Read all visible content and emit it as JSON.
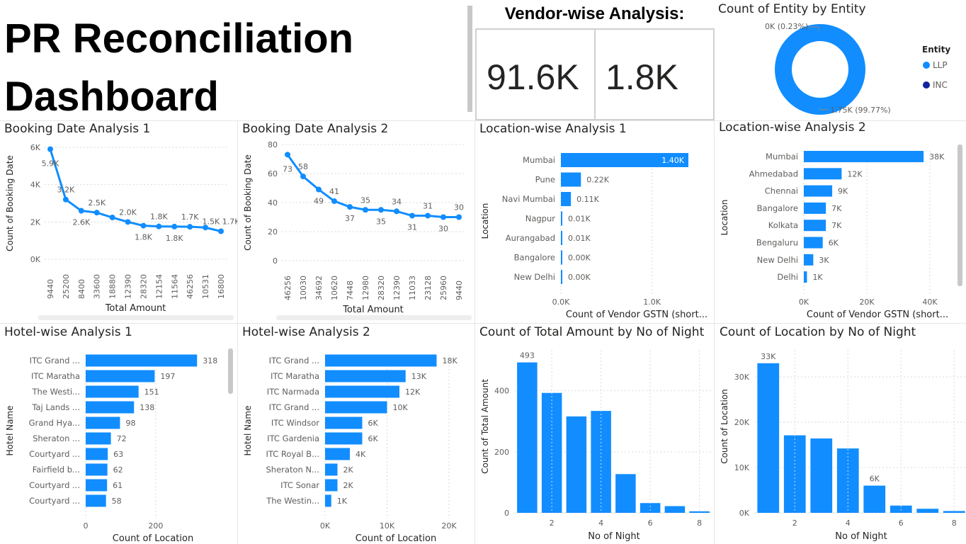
{
  "header": {
    "title_line1": "PR Reconciliation",
    "title_line2": "Dashboard",
    "vendor_title": "Vendor-wise Analysis:",
    "card1_value": "91.6K",
    "card2_value": "1.8K"
  },
  "colors": {
    "bar": "#118DFF",
    "inc": "#12239E",
    "grid": "#d9d9d9",
    "text": "#605E5C"
  },
  "donut": {
    "title": "Count of Entity by Entity",
    "legend_title": "Entity",
    "label_small": "0K (0.23%)",
    "label_large": "1.75K (99.77%)",
    "chart_data": {
      "type": "pie",
      "categories": [
        "LLP",
        "INC"
      ],
      "values": [
        99.77,
        0.23
      ]
    }
  },
  "booking1": {
    "title": "Booking Date Analysis 1",
    "chart_data": {
      "type": "line",
      "x": [
        "9440",
        "25200",
        "8400",
        "33600",
        "18880",
        "12390",
        "28320",
        "12154",
        "11564",
        "46256",
        "10531",
        "16800"
      ],
      "values": [
        5900,
        3200,
        2600,
        2500,
        2240,
        2000,
        1800,
        1760,
        1750,
        1740,
        1700,
        1500
      ],
      "labels": [
        "5.9K",
        "3.2K",
        "2.6K",
        "2.5K",
        "",
        "2.0K",
        "1.8K",
        "1.8K",
        "1.8K",
        "1.7K",
        "",
        "1.5K 1.7K"
      ],
      "ylim": [
        0,
        6000
      ],
      "yticks": [
        "0K",
        "2K",
        "4K",
        "6K"
      ],
      "xlabel": "Total Amount",
      "ylabel": "Count of Booking Date"
    }
  },
  "booking2": {
    "title": "Booking Date Analysis 2",
    "chart_data": {
      "type": "line",
      "x": [
        "46256",
        "10030",
        "34692",
        "10620",
        "7448",
        "12980",
        "28320",
        "12390",
        "11033",
        "23128",
        "25960",
        "9440"
      ],
      "values": [
        73,
        58,
        49,
        41,
        37,
        35,
        35,
        34,
        31,
        31,
        30,
        30
      ],
      "labels": [
        "73",
        "58",
        "49",
        "41",
        "37",
        "35",
        "35",
        "34",
        "31",
        "31",
        "30",
        "30"
      ],
      "ylim": [
        0,
        80
      ],
      "yticks": [
        "0",
        "20",
        "40",
        "60",
        "80"
      ],
      "xlabel": "Total Amount",
      "ylabel": "Count of Booking Date"
    }
  },
  "loc1": {
    "title": "Location-wise Analysis 1",
    "chart_data": {
      "type": "bar",
      "categories": [
        "Mumbai",
        "Pune",
        "Navi Mumbai",
        "Nagpur",
        "Aurangabad",
        "Bangalore",
        "New Delhi"
      ],
      "values": [
        1400,
        220,
        110,
        10,
        10,
        3,
        2
      ],
      "labels": [
        "1.40K",
        "0.22K",
        "0.11K",
        "0.01K",
        "0.01K",
        "0.00K",
        "0.00K"
      ],
      "xlim": [
        0,
        1400
      ],
      "xticks": [
        "0.0K",
        "1.0K"
      ],
      "xlabel": "Count of Vendor GSTN (short...",
      "ylabel": "Location"
    }
  },
  "loc2": {
    "title": "Location-wise Analysis 2",
    "chart_data": {
      "type": "bar",
      "categories": [
        "Mumbai",
        "Ahmedabad",
        "Chennai",
        "Bangalore",
        "Kolkata",
        "Bengaluru",
        "New Delhi",
        "Delhi"
      ],
      "values": [
        38000,
        12000,
        9000,
        7000,
        7000,
        6000,
        3000,
        1000
      ],
      "labels": [
        "38K",
        "12K",
        "9K",
        "7K",
        "7K",
        "6K",
        "3K",
        "1K"
      ],
      "xlim": [
        0,
        40000
      ],
      "xticks": [
        "0K",
        "20K",
        "40K"
      ],
      "xlabel": "Count of Vendor GSTN (short...",
      "ylabel": "Location"
    }
  },
  "hotel1": {
    "title": "Hotel-wise Analysis 1",
    "chart_data": {
      "type": "bar",
      "categories": [
        "ITC Grand ...",
        "ITC Maratha",
        "The Westi...",
        "Taj Lands ...",
        "Grand Hya...",
        "Sheraton ...",
        "Courtyard ...",
        "Fairfield b...",
        "Courtyard ...",
        "Courtyard ..."
      ],
      "values": [
        318,
        197,
        151,
        138,
        98,
        72,
        63,
        62,
        61,
        58
      ],
      "labels": [
        "318",
        "197",
        "151",
        "138",
        "98",
        "72",
        "63",
        "62",
        "61",
        "58"
      ],
      "xlim": [
        0,
        360
      ],
      "xticks": [
        "0",
        "200"
      ],
      "xlabel": "Count of Location",
      "ylabel": "Hotel Name"
    }
  },
  "hotel2": {
    "title": "Hotel-wise Analysis 2",
    "chart_data": {
      "type": "bar",
      "categories": [
        "ITC Grand ...",
        "ITC Maratha",
        "ITC Narmada",
        "ITC Grand ...",
        "ITC Windsor",
        "ITC Gardenia",
        "ITC Royal B...",
        "Sheraton N...",
        "ITC Sonar",
        "The Westin..."
      ],
      "values": [
        18000,
        13000,
        12000,
        10000,
        6000,
        6000,
        4000,
        2000,
        2000,
        1000
      ],
      "labels": [
        "18K",
        "13K",
        "12K",
        "10K",
        "6K",
        "6K",
        "4K",
        "2K",
        "2K",
        "1K"
      ],
      "xlim": [
        0,
        20000
      ],
      "xticks": [
        "0K",
        "10K",
        "20K"
      ],
      "xlabel": "Count of Location",
      "ylabel": "Hotel Name"
    }
  },
  "nights_amount": {
    "title": "Count of Total Amount by No of Night",
    "chart_data": {
      "type": "bar",
      "x": [
        1,
        2,
        3,
        4,
        5,
        6,
        7,
        8
      ],
      "values": [
        493,
        393,
        316,
        334,
        127,
        32,
        22,
        5
      ],
      "top_label": "493",
      "ylim": [
        0,
        520
      ],
      "yticks": [
        "0",
        "200",
        "400"
      ],
      "xticks": [
        "2",
        "4",
        "6",
        "8"
      ],
      "xlabel": "No of Night",
      "ylabel": "Count of Total Amount"
    }
  },
  "nights_location": {
    "title": "Count of Location by No of Night",
    "chart_data": {
      "type": "bar",
      "x": [
        1,
        2,
        3,
        4,
        5,
        6,
        7,
        8
      ],
      "values": [
        33000,
        17100,
        16400,
        14200,
        6000,
        1600,
        900,
        400
      ],
      "top_label": "33K",
      "mid_label": "6K",
      "ylim": [
        0,
        35000
      ],
      "yticks": [
        "0K",
        "10K",
        "20K",
        "30K"
      ],
      "xticks": [
        "2",
        "4",
        "6",
        "8"
      ],
      "xlabel": "No of Night",
      "ylabel": "Count of Location"
    }
  }
}
